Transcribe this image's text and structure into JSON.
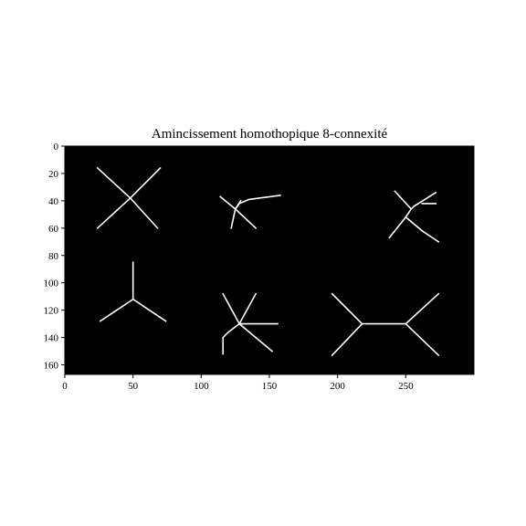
{
  "figure": {
    "title": "Amincissement homothopique 8-connexité",
    "background": "#000000",
    "stroke_color": "#ffffff",
    "x_range": [
      0,
      300
    ],
    "y_range": [
      0,
      167
    ],
    "y_inverted": true,
    "x_ticks": [
      0,
      50,
      100,
      150,
      200,
      250
    ],
    "y_ticks": [
      0,
      20,
      40,
      60,
      80,
      100,
      120,
      140,
      160
    ],
    "shapes": [
      {
        "name": "x-cross",
        "segments": [
          [
            [
              24,
              16
            ],
            [
              48,
              38
            ],
            [
              68,
              60
            ]
          ],
          [
            [
              24,
              60
            ],
            [
              48,
              38
            ],
            [
              70,
              16
            ]
          ]
        ]
      },
      {
        "name": "branch-top-middle",
        "segments": [
          [
            [
              114,
              37
            ],
            [
              125,
              46
            ],
            [
              140,
              60
            ]
          ],
          [
            [
              122,
              60
            ],
            [
              125,
              46
            ],
            [
              128,
              42
            ],
            [
              135,
              39
            ],
            [
              158,
              36
            ]
          ],
          [
            [
              125,
              46
            ],
            [
              129,
              40
            ]
          ]
        ]
      },
      {
        "name": "branch-top-right",
        "segments": [
          [
            [
              242,
              33
            ],
            [
              254,
              46
            ],
            [
              256,
              44
            ],
            [
              272,
              34
            ]
          ],
          [
            [
              238,
              67
            ],
            [
              250,
              52
            ],
            [
              254,
              46
            ]
          ],
          [
            [
              250,
              52
            ],
            [
              262,
              62
            ],
            [
              274,
              70
            ]
          ],
          [
            [
              262,
              42
            ],
            [
              272,
              42
            ]
          ]
        ]
      },
      {
        "name": "y-junction",
        "segments": [
          [
            [
              50,
              85
            ],
            [
              50,
              112
            ]
          ],
          [
            [
              50,
              112
            ],
            [
              26,
              128
            ]
          ],
          [
            [
              50,
              112
            ],
            [
              74,
              128
            ]
          ]
        ]
      },
      {
        "name": "branch-bottom-middle",
        "segments": [
          [
            [
              116,
              108
            ],
            [
              128,
              130
            ],
            [
              140,
              108
            ]
          ],
          [
            [
              128,
              130
            ],
            [
              152,
              150
            ]
          ],
          [
            [
              128,
              130
            ],
            [
              120,
              136
            ],
            [
              116,
              140
            ],
            [
              116,
              152
            ]
          ],
          [
            [
              128,
              130
            ],
            [
              156,
              130
            ]
          ]
        ]
      },
      {
        "name": "h-shape",
        "segments": [
          [
            [
              196,
              108
            ],
            [
              218,
              130
            ],
            [
              196,
              153
            ]
          ],
          [
            [
              218,
              130
            ],
            [
              250,
              130
            ]
          ],
          [
            [
              250,
              130
            ],
            [
              274,
              108
            ]
          ],
          [
            [
              250,
              130
            ],
            [
              274,
              153
            ]
          ]
        ]
      }
    ]
  }
}
